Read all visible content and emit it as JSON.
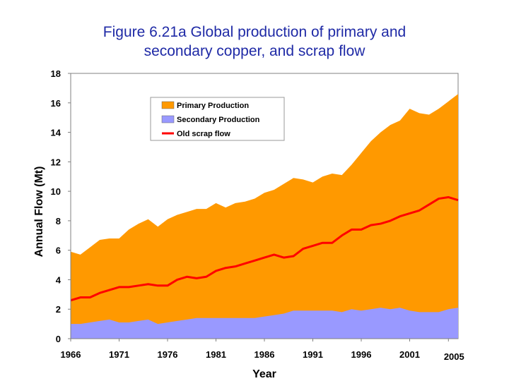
{
  "title_lines": [
    "Figure 6.21a Global production of primary and",
    "secondary copper, and scrap flow"
  ],
  "chart_data": {
    "type": "area",
    "title": "Figure 6.21a Global production of primary and secondary copper, and scrap flow",
    "xlabel": "Year",
    "ylabel": "Annual Flow (Mt)",
    "xlim": [
      1966,
      2006
    ],
    "ylim": [
      0,
      18
    ],
    "x_ticks": [
      1966,
      1971,
      1976,
      1981,
      1986,
      1991,
      1996,
      2001,
      2005
    ],
    "y_ticks": [
      0,
      2,
      4,
      6,
      8,
      10,
      12,
      14,
      16,
      18
    ],
    "x": [
      1966,
      1967,
      1968,
      1969,
      1970,
      1971,
      1972,
      1973,
      1974,
      1975,
      1976,
      1977,
      1978,
      1979,
      1980,
      1981,
      1982,
      1983,
      1984,
      1985,
      1986,
      1987,
      1988,
      1989,
      1990,
      1991,
      1992,
      1993,
      1994,
      1995,
      1996,
      1997,
      1998,
      1999,
      2000,
      2001,
      2002,
      2003,
      2004,
      2005,
      2006
    ],
    "series": [
      {
        "name": "Primary Production",
        "kind": "area",
        "color": "#ff9900",
        "values": [
          5.9,
          5.7,
          6.2,
          6.7,
          6.8,
          6.8,
          7.4,
          7.8,
          8.1,
          7.6,
          8.1,
          8.4,
          8.6,
          8.8,
          8.8,
          9.2,
          8.9,
          9.2,
          9.3,
          9.5,
          9.9,
          10.1,
          10.5,
          10.9,
          10.8,
          10.6,
          11.0,
          11.2,
          11.1,
          11.8,
          12.6,
          13.4,
          14.0,
          14.5,
          14.8,
          15.6,
          15.3,
          15.2,
          15.6,
          16.1,
          16.6
        ]
      },
      {
        "name": "Secondary Production",
        "kind": "area",
        "color": "#9999ff",
        "values": [
          1.0,
          1.0,
          1.1,
          1.2,
          1.3,
          1.1,
          1.1,
          1.2,
          1.3,
          1.0,
          1.1,
          1.2,
          1.3,
          1.4,
          1.4,
          1.4,
          1.4,
          1.4,
          1.4,
          1.4,
          1.5,
          1.6,
          1.7,
          1.9,
          1.9,
          1.9,
          1.9,
          1.9,
          1.8,
          2.0,
          1.9,
          2.0,
          2.1,
          2.0,
          2.1,
          1.9,
          1.8,
          1.8,
          1.8,
          2.0,
          2.1
        ]
      },
      {
        "name": "Old scrap flow",
        "kind": "line",
        "color": "#ff0000",
        "values": [
          2.6,
          2.8,
          2.8,
          3.1,
          3.3,
          3.5,
          3.5,
          3.6,
          3.7,
          3.6,
          3.6,
          4.0,
          4.2,
          4.1,
          4.2,
          4.6,
          4.8,
          4.9,
          5.1,
          5.3,
          5.5,
          5.7,
          5.5,
          5.6,
          6.1,
          6.3,
          6.5,
          6.5,
          7.0,
          7.4,
          7.4,
          7.7,
          7.8,
          8.0,
          8.3,
          8.5,
          8.7,
          9.1,
          9.5,
          9.6,
          9.4
        ]
      }
    ],
    "legend": [
      "Primary Production",
      "Secondary Production",
      "Old scrap flow"
    ],
    "legend_position": "upper-left inside",
    "grid": false
  }
}
